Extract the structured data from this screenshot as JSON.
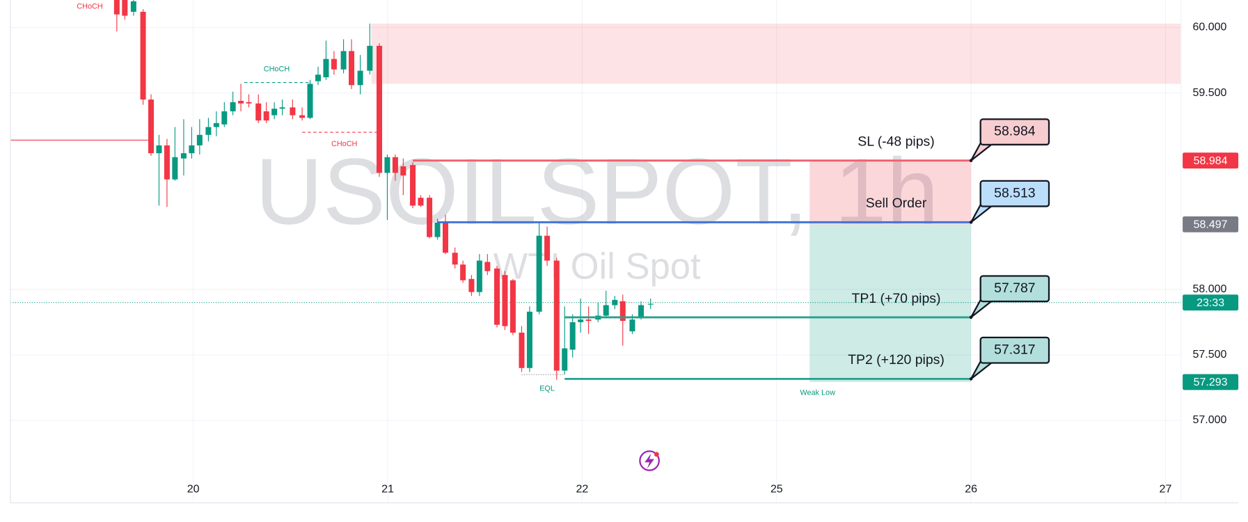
{
  "chart_data": {
    "type": "candlestick",
    "watermark": "USOILSPOT, 1h",
    "subtitle": "WTI Oil Spot",
    "up_color": "#089981",
    "down_color": "#f23645",
    "xlim": [
      19.06,
      25.08
    ],
    "xticks": [
      20,
      21,
      22,
      {
        "value": 23,
        "label": "25"
      },
      {
        "value": 24,
        "label": "26"
      },
      {
        "value": 25,
        "label": "27"
      }
    ],
    "ylim": [
      56.37,
      60.21
    ],
    "yticks": [
      {
        "value": 57,
        "label": "57.000"
      },
      {
        "value": 57.5,
        "label": "57.500"
      },
      {
        "value": 58,
        "label": "58.000"
      },
      {
        "value": 59.5,
        "label": "59.500"
      },
      {
        "value": 60,
        "label": "60.000"
      }
    ],
    "grid": true,
    "candles": {
      "x": [
        19.607,
        19.648,
        19.693,
        19.742,
        19.783,
        19.824,
        19.865,
        19.906,
        19.951,
        19.992,
        20.033,
        20.078,
        20.119,
        20.16,
        20.204,
        20.245,
        20.286,
        20.335,
        20.376,
        20.417,
        20.458,
        20.511,
        20.56,
        20.601,
        20.642,
        20.683,
        20.724,
        20.773,
        20.814,
        20.859,
        20.908,
        20.957,
        20.998,
        21.039,
        21.08,
        21.129,
        21.17,
        21.215,
        21.256,
        21.297,
        21.346,
        21.387,
        21.431,
        21.472,
        21.513,
        21.562,
        21.603,
        21.644,
        21.689,
        21.73,
        21.779,
        21.82,
        21.869,
        21.91,
        21.951,
        21.992,
        22.033,
        22.082,
        22.123,
        22.168,
        22.209,
        22.258,
        22.303,
        22.352
      ],
      "open": [
        60.21,
        60.21,
        60.12,
        60.12,
        59.45,
        59.04,
        59.1,
        58.84,
        59.0,
        59.04,
        59.1,
        59.18,
        59.24,
        59.26,
        59.36,
        59.44,
        59.43,
        59.42,
        59.36,
        59.33,
        59.38,
        59.39,
        59.33,
        59.31,
        59.59,
        59.62,
        59.76,
        59.68,
        59.82,
        59.56,
        59.67,
        59.86,
        58.89,
        59.01,
        58.94,
        58.95,
        58.7,
        58.7,
        58.4,
        58.51,
        58.28,
        58.19,
        58.08,
        57.98,
        58.21,
        58.16,
        58.11,
        58.07,
        57.67,
        57.4,
        57.83,
        58.41,
        58.22,
        57.38,
        57.54,
        57.75,
        57.77,
        57.77,
        57.8,
        57.88,
        57.91,
        57.68,
        57.78,
        57.89
      ],
      "high": [
        60.21,
        60.21,
        60.21,
        60.14,
        59.49,
        59.18,
        59.15,
        59.24,
        59.3,
        59.24,
        59.3,
        59.31,
        59.36,
        59.43,
        59.51,
        59.57,
        59.49,
        59.49,
        59.43,
        59.43,
        59.45,
        59.45,
        59.39,
        59.6,
        59.7,
        59.9,
        59.82,
        59.91,
        59.91,
        59.79,
        60.03,
        59.88,
        59.03,
        59.03,
        59.0,
        58.97,
        58.72,
        58.72,
        58.54,
        58.57,
        58.32,
        58.22,
        58.11,
        58.27,
        58.27,
        58.18,
        58.14,
        58.08,
        57.72,
        57.87,
        58.52,
        58.48,
        58.24,
        57.87,
        57.81,
        57.93,
        57.87,
        57.9,
        57.99,
        57.95,
        57.96,
        57.81,
        57.91,
        57.93
      ],
      "low": [
        59.97,
        60.06,
        60.09,
        59.41,
        59.02,
        58.64,
        58.63,
        58.83,
        58.87,
        59.0,
        59.03,
        59.13,
        59.17,
        59.24,
        59.33,
        59.36,
        59.39,
        59.27,
        59.27,
        59.3,
        59.33,
        59.3,
        59.29,
        59.3,
        59.56,
        59.6,
        59.64,
        59.65,
        59.53,
        59.49,
        59.64,
        58.86,
        58.53,
        58.83,
        58.72,
        58.62,
        58.63,
        58.39,
        58.38,
        58.27,
        58.16,
        58.05,
        57.95,
        57.95,
        58.11,
        57.71,
        57.69,
        57.65,
        57.37,
        57.37,
        57.81,
        58.18,
        57.31,
        57.35,
        57.48,
        57.67,
        57.66,
        57.75,
        57.78,
        57.85,
        57.57,
        57.66,
        57.77,
        57.85
      ],
      "close": [
        60.1,
        60.09,
        60.2,
        59.45,
        59.04,
        59.1,
        58.84,
        59.01,
        59.04,
        59.1,
        59.18,
        59.24,
        59.27,
        59.36,
        59.43,
        59.42,
        59.42,
        59.29,
        59.29,
        59.38,
        59.39,
        59.33,
        59.31,
        59.57,
        59.64,
        59.76,
        59.68,
        59.82,
        59.56,
        59.67,
        59.86,
        58.89,
        59.01,
        58.89,
        58.87,
        58.64,
        58.64,
        58.4,
        58.51,
        58.28,
        58.19,
        58.07,
        57.98,
        58.22,
        58.14,
        57.73,
        57.72,
        57.67,
        57.4,
        57.83,
        58.41,
        58.22,
        57.38,
        57.55,
        57.75,
        57.77,
        57.76,
        57.8,
        57.88,
        57.92,
        57.76,
        57.77,
        57.88,
        57.89
      ]
    },
    "zones": [
      {
        "x": [
          20.916,
          25.08
        ],
        "price": [
          59.57,
          60.03
        ],
        "color": "rgba(242,54,69,0.14)"
      }
    ],
    "structure_lines": [
      {
        "x": [
          19.06,
          19.783
        ],
        "price": 59.14,
        "color": "#f23645",
        "style": "solid"
      },
      {
        "x": [
          20.262,
          20.601
        ],
        "price": 59.58,
        "color": "#089981",
        "style": "dashed"
      },
      {
        "x": [
          20.56,
          20.957
        ],
        "price": 59.2,
        "color": "#f23645",
        "style": "dashed"
      },
      {
        "x": [
          21.689,
          21.91
        ],
        "price": 57.35,
        "color": "#787b86",
        "style": "dotted"
      }
    ],
    "annotations": [
      {
        "text": "CHoCH",
        "x": 19.468,
        "price": 60.16,
        "color": "#f23645"
      },
      {
        "text": "CHoCH",
        "x": 20.429,
        "price": 59.68,
        "color": "#089981"
      },
      {
        "text": "CHoCH",
        "x": 20.777,
        "price": 59.11,
        "color": "#f23645"
      },
      {
        "text": "EQL",
        "x": 21.82,
        "price": 57.24,
        "color": "#089981"
      },
      {
        "text": "Weak Low",
        "x": 23.211,
        "price": 57.21,
        "color": "#089981"
      }
    ],
    "position": {
      "x": [
        23.17,
        24.0
      ],
      "stop": 58.984,
      "entry": 58.497,
      "target": 57.293
    },
    "orders": [
      {
        "label": "SL (-48 pips)",
        "price": 58.984,
        "start": 21.129,
        "color": "#f0606c",
        "box_color": "#f8cdd0"
      },
      {
        "label": "Sell Order",
        "price": 58.513,
        "start": 21.256,
        "color": "#3d6fd6",
        "box_color": "#bbdefb"
      },
      {
        "label": "TP1 (+70 pips)",
        "price": 57.787,
        "start": 21.91,
        "color": "#26a08c",
        "box_color": "#b2dfdb"
      },
      {
        "label": "TP2 (+120 pips)",
        "price": 57.317,
        "start": 21.91,
        "color": "#26a08c",
        "box_color": "#b2dfdb"
      }
    ],
    "last_price": 57.9,
    "countdown": "23:33"
  }
}
